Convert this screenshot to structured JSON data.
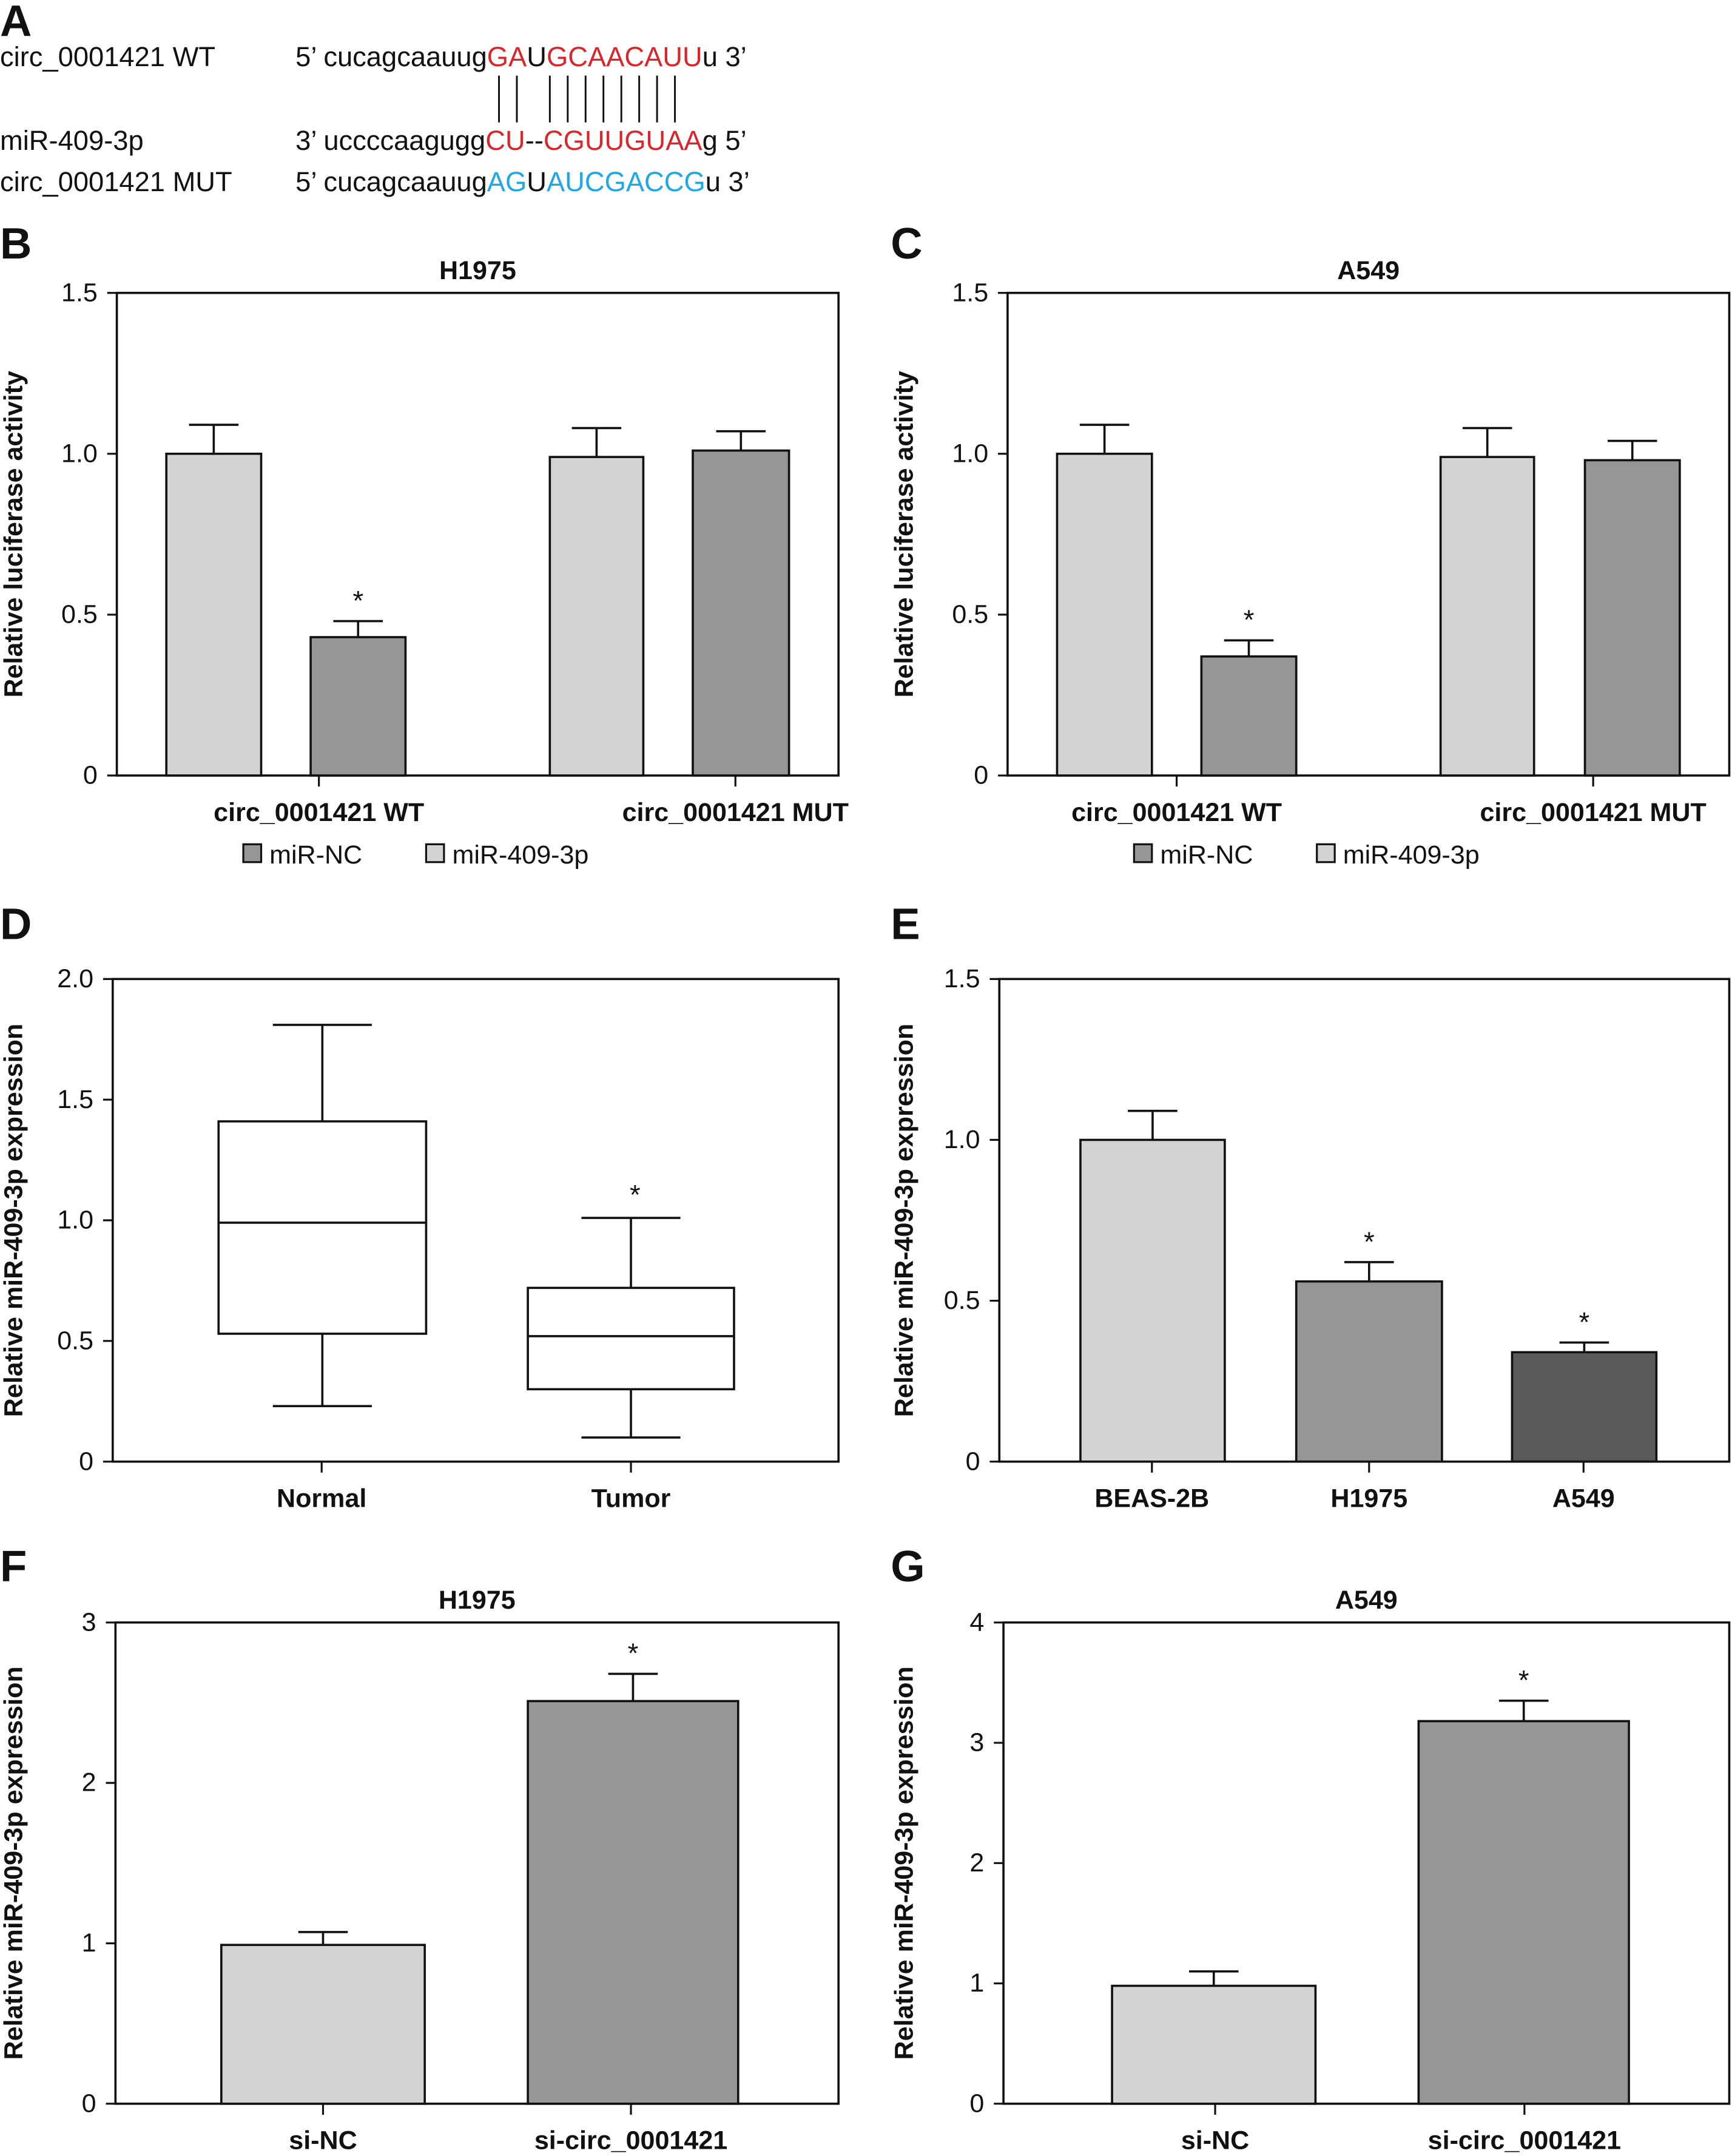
{
  "panel_a": {
    "letter": "A",
    "rows": [
      {
        "name": "circ_0001421 WT",
        "parts": [
          [
            "5’ cucagcaauug",
            "k"
          ],
          [
            "GA",
            "r"
          ],
          [
            "U",
            "k"
          ],
          [
            "GCAACAUU",
            "r"
          ],
          [
            "u 3’",
            "k"
          ]
        ]
      },
      {
        "name": "miR-409-3p",
        "parts": [
          [
            "3’ uccccaagugg",
            "k"
          ],
          [
            "CU",
            "r"
          ],
          [
            "--",
            "k"
          ],
          [
            "CGUUGUAA",
            "r"
          ],
          [
            "g 5’",
            "k"
          ]
        ]
      },
      {
        "name": "circ_0001421 MUT",
        "parts": [
          [
            "5’ cucagcaauug",
            "k"
          ],
          [
            "AG",
            "b"
          ],
          [
            "U",
            "k"
          ],
          [
            "AUCGACCG",
            "b"
          ],
          [
            "u 3’",
            "k"
          ]
        ]
      }
    ],
    "pair_count": 10
  },
  "colors": {
    "light": "#d3d3d3",
    "mid": "#969696",
    "dark": "#5a5a5a",
    "red": "#d9262b",
    "blue": "#1ea7e6"
  },
  "chart_data": [
    {
      "id": "B",
      "letter": "B",
      "type": "bar",
      "title": "H1975",
      "ylabel": "Relative luciferase activity",
      "ylim": [
        0,
        1.5
      ],
      "yticks": [
        "0",
        "0.5",
        "1.0",
        "1.5"
      ],
      "ytick_values": [
        0,
        0.5,
        1.0,
        1.5
      ],
      "categories": [
        "circ_0001421 WT",
        "circ_0001421 MUT"
      ],
      "legend": [
        {
          "label": "miR-NC",
          "color": "mid"
        },
        {
          "label": "miR-409-3p",
          "color": "light"
        }
      ],
      "bars": [
        {
          "category": "circ_0001421 WT",
          "color": "light",
          "value": 1.0,
          "err_top": 1.09,
          "star": false
        },
        {
          "category": "circ_0001421 WT",
          "color": "mid",
          "value": 0.43,
          "err_top": 0.48,
          "star": true
        },
        {
          "category": "circ_0001421 MUT",
          "color": "light",
          "value": 0.99,
          "err_top": 1.08,
          "star": false
        },
        {
          "category": "circ_0001421 MUT",
          "color": "mid",
          "value": 1.01,
          "err_top": 1.07,
          "star": false
        }
      ]
    },
    {
      "id": "C",
      "letter": "C",
      "type": "bar",
      "title": "A549",
      "ylabel": "Relative luciferase activity",
      "ylim": [
        0,
        1.5
      ],
      "yticks": [
        "0",
        "0.5",
        "1.0",
        "1.5"
      ],
      "ytick_values": [
        0,
        0.5,
        1.0,
        1.5
      ],
      "categories": [
        "circ_0001421 WT",
        "circ_0001421 MUT"
      ],
      "legend": [
        {
          "label": "miR-NC",
          "color": "mid"
        },
        {
          "label": "miR-409-3p",
          "color": "light"
        }
      ],
      "bars": [
        {
          "category": "circ_0001421 WT",
          "color": "light",
          "value": 1.0,
          "err_top": 1.09,
          "star": false
        },
        {
          "category": "circ_0001421 WT",
          "color": "mid",
          "value": 0.37,
          "err_top": 0.42,
          "star": true
        },
        {
          "category": "circ_0001421 MUT",
          "color": "light",
          "value": 0.99,
          "err_top": 1.08,
          "star": false
        },
        {
          "category": "circ_0001421 MUT",
          "color": "mid",
          "value": 0.98,
          "err_top": 1.04,
          "star": false
        }
      ]
    },
    {
      "id": "D",
      "letter": "D",
      "type": "box",
      "title": "",
      "ylabel": "Relative miR-409-3p expression",
      "ylim": [
        0,
        2.0
      ],
      "yticks": [
        "0",
        "0.5",
        "1.0",
        "1.5",
        "2.0"
      ],
      "ytick_values": [
        0,
        0.5,
        1.0,
        1.5,
        2.0
      ],
      "categories": [
        "Normal",
        "Tumor"
      ],
      "boxes": [
        {
          "category": "Normal",
          "min": 0.23,
          "q1": 0.53,
          "median": 0.99,
          "q3": 1.41,
          "max": 1.81,
          "star": false
        },
        {
          "category": "Tumor",
          "min": 0.1,
          "q1": 0.3,
          "median": 0.52,
          "q3": 0.72,
          "max": 1.01,
          "star": true
        }
      ]
    },
    {
      "id": "E",
      "letter": "E",
      "type": "bar",
      "title": "",
      "ylabel": "Relative miR-409-3p expression",
      "ylim": [
        0,
        1.5
      ],
      "yticks": [
        "0",
        "0.5",
        "1.0",
        "1.5"
      ],
      "ytick_values": [
        0,
        0.5,
        1.0,
        1.5
      ],
      "categories": [
        "BEAS-2B",
        "H1975",
        "A549"
      ],
      "bars": [
        {
          "category": "BEAS-2B",
          "color": "light",
          "value": 1.0,
          "err_top": 1.09,
          "star": false
        },
        {
          "category": "H1975",
          "color": "mid",
          "value": 0.56,
          "err_top": 0.62,
          "star": true
        },
        {
          "category": "A549",
          "color": "dark",
          "value": 0.34,
          "err_top": 0.37,
          "star": true
        }
      ]
    },
    {
      "id": "F",
      "letter": "F",
      "type": "bar",
      "title": "H1975",
      "ylabel": "Relative miR-409-3p expression",
      "ylim": [
        0,
        3
      ],
      "yticks": [
        "0",
        "1",
        "2",
        "3"
      ],
      "ytick_values": [
        0,
        1,
        2,
        3
      ],
      "categories": [
        "si-NC",
        "si-circ_0001421"
      ],
      "bars": [
        {
          "category": "si-NC",
          "color": "light",
          "value": 0.99,
          "err_top": 1.07,
          "star": false
        },
        {
          "category": "si-circ_0001421",
          "color": "mid",
          "value": 2.51,
          "err_top": 2.68,
          "star": true
        }
      ]
    },
    {
      "id": "G",
      "letter": "G",
      "type": "bar",
      "title": "A549",
      "ylabel": "Relative miR-409-3p expression",
      "ylim": [
        0,
        4
      ],
      "yticks": [
        "0",
        "1",
        "2",
        "3",
        "4"
      ],
      "ytick_values": [
        0,
        1,
        2,
        3,
        4
      ],
      "categories": [
        "si-NC",
        "si-circ_0001421"
      ],
      "bars": [
        {
          "category": "si-NC",
          "color": "light",
          "value": 0.98,
          "err_top": 1.1,
          "star": false
        },
        {
          "category": "si-circ_0001421",
          "color": "mid",
          "value": 3.18,
          "err_top": 3.35,
          "star": true
        }
      ]
    }
  ],
  "star_symbol": "*"
}
